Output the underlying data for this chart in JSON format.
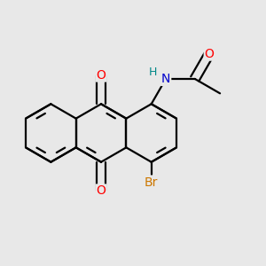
{
  "bg_color": "#e8e8e8",
  "bond_color": "#000000",
  "bond_width": 1.6,
  "figsize": [
    3.0,
    3.0
  ],
  "dpi": 100,
  "atom_colors": {
    "O": "#ff0000",
    "N": "#0000cc",
    "Br": "#cc7700",
    "H": "#008888",
    "C": "#000000"
  },
  "xlim": [
    -1.2,
    1.5
  ],
  "ylim": [
    -1.2,
    1.2
  ]
}
